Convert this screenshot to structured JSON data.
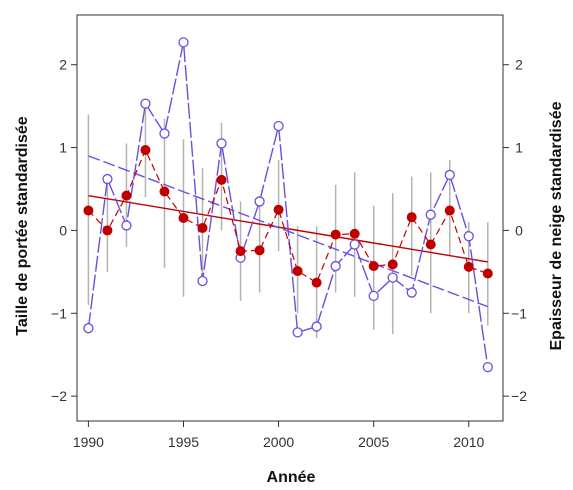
{
  "chart_data": {
    "type": "line",
    "xlabel": "Année",
    "ylabel_left": "Taille de portée standardisée",
    "ylabel_right": "Epaisseur de neige standardisée",
    "xlim": [
      1989.4,
      2011.8
    ],
    "ylim": [
      -2.3,
      2.6
    ],
    "x_ticks": [
      1990,
      1995,
      2000,
      2005,
      2010
    ],
    "y_ticks": [
      -2,
      -1,
      0,
      1,
      2
    ],
    "grid": false,
    "colors": {
      "litter": "#c00000",
      "snow": "#6a4fe0",
      "error_bar": "#b3b3b3",
      "axis": "#333333"
    },
    "series": [
      {
        "marker": "filled-circle",
        "axis": "left",
        "x": [
          1990,
          1991,
          1992,
          1993,
          1994,
          1995,
          1996,
          1997,
          1998,
          1999,
          2000,
          2001,
          2002,
          2003,
          2004,
          2005,
          2006,
          2007,
          2008,
          2009,
          2010,
          2011
        ],
        "values": [
          0.24,
          0.0,
          0.42,
          0.97,
          0.47,
          0.15,
          0.03,
          0.61,
          -0.25,
          -0.24,
          0.25,
          -0.49,
          -0.63,
          -0.05,
          -0.04,
          -0.43,
          -0.41,
          0.16,
          -0.17,
          0.24,
          -0.44,
          -0.52
        ],
        "error_low": [
          -0.9,
          -0.5,
          -0.2,
          0.4,
          -0.45,
          -0.8,
          -0.65,
          0.0,
          -0.85,
          -0.75,
          -0.25,
          -1.0,
          -1.3,
          -0.75,
          -0.8,
          -1.2,
          -1.25,
          -0.55,
          -1.0,
          -0.3,
          -1.0,
          -1.15
        ],
        "error_high": [
          1.4,
          0.55,
          1.05,
          1.5,
          1.35,
          1.1,
          0.75,
          1.3,
          0.35,
          0.3,
          0.85,
          0.05,
          0.05,
          0.55,
          0.7,
          0.3,
          0.45,
          0.65,
          0.7,
          0.85,
          0.1,
          0.1
        ],
        "trend": [
          0.42,
          -0.38
        ]
      },
      {
        "marker": "open-circle",
        "axis": "right",
        "x": [
          1990,
          1991,
          1992,
          1993,
          1994,
          1995,
          1996,
          1997,
          1998,
          1999,
          2000,
          2001,
          2002,
          2003,
          2004,
          2005,
          2006,
          2007,
          2008,
          2009,
          2010,
          2011
        ],
        "values": [
          -1.18,
          0.62,
          0.06,
          1.53,
          1.17,
          2.27,
          -0.61,
          1.05,
          -0.33,
          0.35,
          1.26,
          -1.23,
          -1.16,
          -0.43,
          -0.17,
          -0.79,
          -0.57,
          -0.75,
          0.19,
          0.67,
          -0.07,
          -1.65
        ],
        "trend": [
          0.9,
          -0.92
        ]
      }
    ]
  }
}
